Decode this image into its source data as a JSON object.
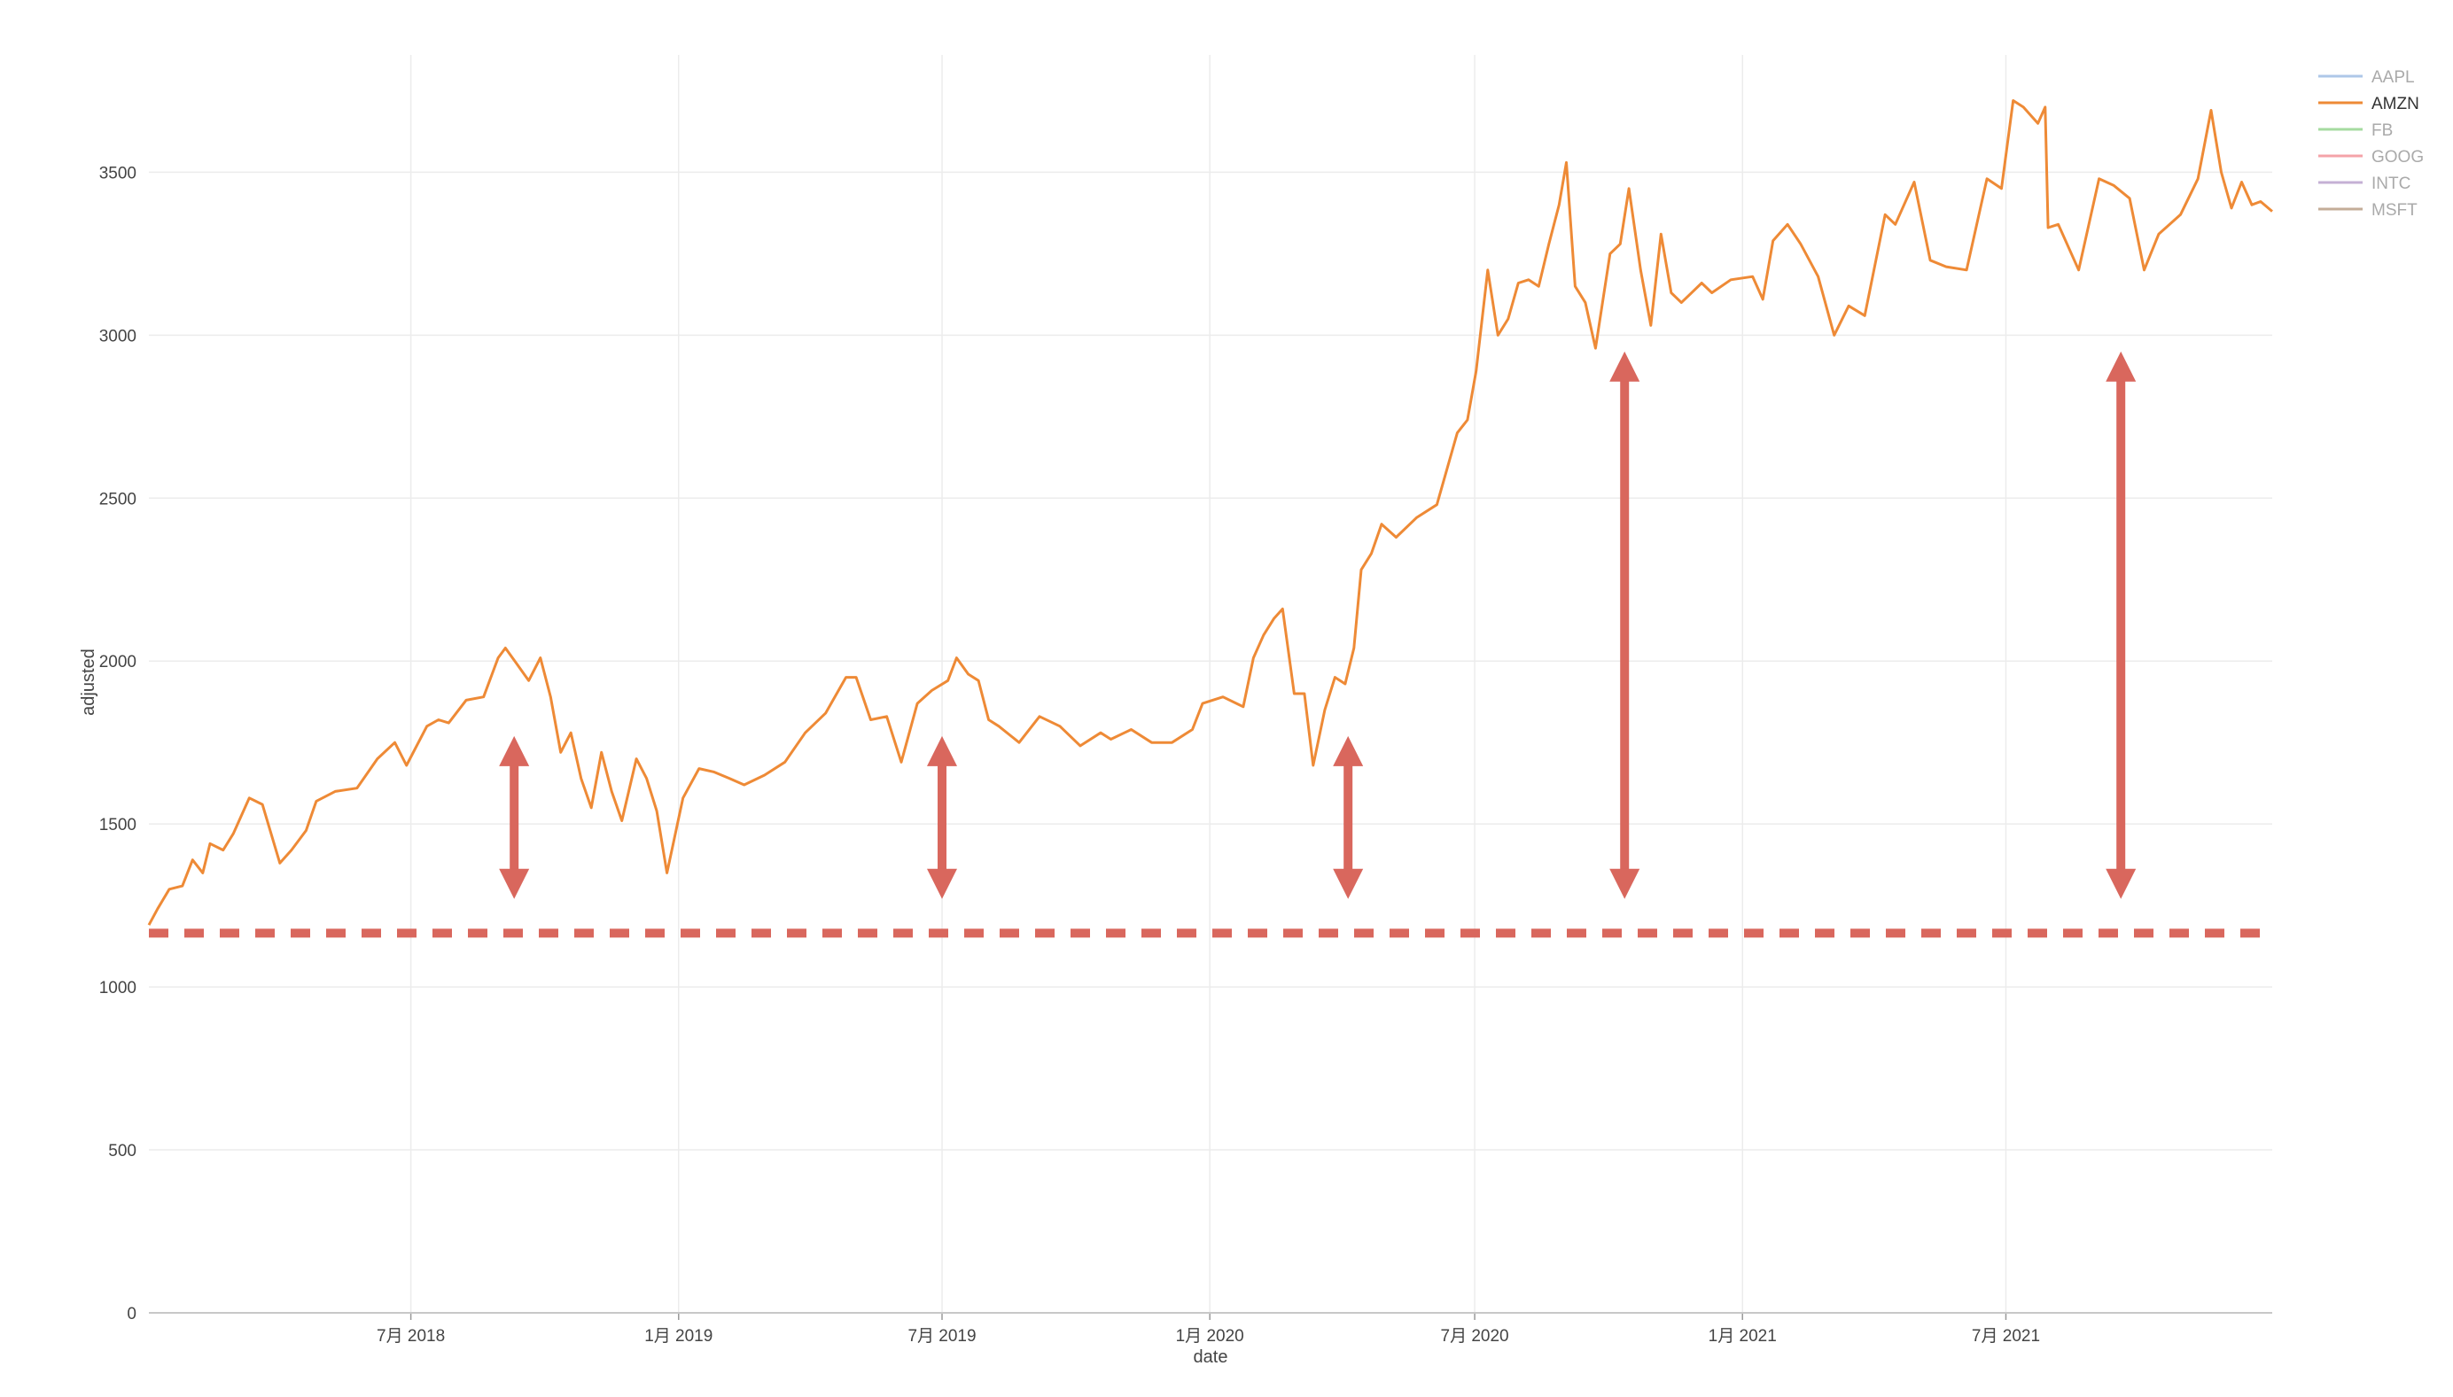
{
  "chart_data": {
    "type": "line",
    "title": "",
    "xlabel": "date",
    "ylabel": "adjusted",
    "x_range": [
      "2018-01-02",
      "2021-12-31"
    ],
    "ylim": [
      0,
      3860
    ],
    "yticks": [
      0,
      500,
      1000,
      1500,
      2000,
      2500,
      3000,
      3500
    ],
    "ytick_labels": [
      "0",
      "500",
      "1000",
      "1500",
      "2000",
      "2500",
      "3000",
      "3500"
    ],
    "xticks": [
      "2018-07-01",
      "2019-01-01",
      "2019-07-01",
      "2020-01-01",
      "2020-07-01",
      "2021-01-01",
      "2021-07-01"
    ],
    "xtick_labels": [
      "7月 2018",
      "1月 2019",
      "7月 2019",
      "1月 2020",
      "7月 2020",
      "1月 2021",
      "7月 2021"
    ],
    "grid": true,
    "legend_position": "top-right",
    "legend": [
      {
        "name": "AAPL",
        "color": "#aec7e8",
        "active": false
      },
      {
        "name": "AMZN",
        "color": "#ee8a36",
        "active": true
      },
      {
        "name": "FB",
        "color": "#a6dba0",
        "active": false
      },
      {
        "name": "GOOG",
        "color": "#f4a3a8",
        "active": false
      },
      {
        "name": "INTC",
        "color": "#c5b0d5",
        "active": false
      },
      {
        "name": "MSFT",
        "color": "#c4ad98",
        "active": false
      }
    ],
    "series": [
      {
        "name": "AMZN",
        "color": "#ee8a36",
        "points": [
          [
            "2018-01-02",
            1190
          ],
          [
            "2018-01-08",
            1240
          ],
          [
            "2018-01-16",
            1300
          ],
          [
            "2018-01-25",
            1310
          ],
          [
            "2018-02-01",
            1390
          ],
          [
            "2018-02-08",
            1350
          ],
          [
            "2018-02-13",
            1440
          ],
          [
            "2018-02-22",
            1420
          ],
          [
            "2018-03-01",
            1470
          ],
          [
            "2018-03-12",
            1580
          ],
          [
            "2018-03-21",
            1560
          ],
          [
            "2018-04-02",
            1380
          ],
          [
            "2018-04-10",
            1420
          ],
          [
            "2018-04-20",
            1480
          ],
          [
            "2018-04-27",
            1570
          ],
          [
            "2018-05-10",
            1600
          ],
          [
            "2018-05-25",
            1610
          ],
          [
            "2018-06-08",
            1700
          ],
          [
            "2018-06-20",
            1750
          ],
          [
            "2018-06-28",
            1680
          ],
          [
            "2018-07-12",
            1800
          ],
          [
            "2018-07-20",
            1820
          ],
          [
            "2018-07-27",
            1810
          ],
          [
            "2018-08-08",
            1880
          ],
          [
            "2018-08-20",
            1890
          ],
          [
            "2018-08-30",
            2010
          ],
          [
            "2018-09-04",
            2040
          ],
          [
            "2018-09-12",
            1990
          ],
          [
            "2018-09-20",
            1940
          ],
          [
            "2018-09-28",
            2010
          ],
          [
            "2018-10-05",
            1890
          ],
          [
            "2018-10-12",
            1720
          ],
          [
            "2018-10-19",
            1780
          ],
          [
            "2018-10-26",
            1640
          ],
          [
            "2018-11-02",
            1550
          ],
          [
            "2018-11-09",
            1720
          ],
          [
            "2018-11-16",
            1600
          ],
          [
            "2018-11-23",
            1510
          ],
          [
            "2018-12-03",
            1700
          ],
          [
            "2018-12-10",
            1640
          ],
          [
            "2018-12-17",
            1540
          ],
          [
            "2018-12-24",
            1350
          ],
          [
            "2019-01-04",
            1580
          ],
          [
            "2019-01-15",
            1670
          ],
          [
            "2019-01-25",
            1660
          ],
          [
            "2019-02-05",
            1640
          ],
          [
            "2019-02-15",
            1620
          ],
          [
            "2019-03-01",
            1650
          ],
          [
            "2019-03-15",
            1690
          ],
          [
            "2019-03-29",
            1780
          ],
          [
            "2019-04-12",
            1840
          ],
          [
            "2019-04-26",
            1950
          ],
          [
            "2019-05-03",
            1950
          ],
          [
            "2019-05-13",
            1820
          ],
          [
            "2019-05-24",
            1830
          ],
          [
            "2019-06-03",
            1690
          ],
          [
            "2019-06-14",
            1870
          ],
          [
            "2019-06-24",
            1910
          ],
          [
            "2019-07-05",
            1940
          ],
          [
            "2019-07-11",
            2010
          ],
          [
            "2019-07-19",
            1960
          ],
          [
            "2019-07-26",
            1940
          ],
          [
            "2019-08-02",
            1820
          ],
          [
            "2019-08-09",
            1800
          ],
          [
            "2019-08-23",
            1750
          ],
          [
            "2019-09-06",
            1830
          ],
          [
            "2019-09-20",
            1800
          ],
          [
            "2019-10-04",
            1740
          ],
          [
            "2019-10-18",
            1780
          ],
          [
            "2019-10-25",
            1760
          ],
          [
            "2019-11-08",
            1790
          ],
          [
            "2019-11-22",
            1750
          ],
          [
            "2019-12-06",
            1750
          ],
          [
            "2019-12-20",
            1790
          ],
          [
            "2019-12-27",
            1870
          ],
          [
            "2020-01-10",
            1890
          ],
          [
            "2020-01-24",
            1860
          ],
          [
            "2020-01-31",
            2010
          ],
          [
            "2020-02-07",
            2080
          ],
          [
            "2020-02-14",
            2130
          ],
          [
            "2020-02-20",
            2160
          ],
          [
            "2020-02-28",
            1900
          ],
          [
            "2020-03-06",
            1900
          ],
          [
            "2020-03-12",
            1680
          ],
          [
            "2020-03-20",
            1850
          ],
          [
            "2020-03-27",
            1950
          ],
          [
            "2020-04-03",
            1930
          ],
          [
            "2020-04-09",
            2040
          ],
          [
            "2020-04-14",
            2280
          ],
          [
            "2020-04-21",
            2330
          ],
          [
            "2020-04-28",
            2420
          ],
          [
            "2020-05-08",
            2380
          ],
          [
            "2020-05-22",
            2440
          ],
          [
            "2020-06-05",
            2480
          ],
          [
            "2020-06-19",
            2700
          ],
          [
            "2020-06-26",
            2740
          ],
          [
            "2020-07-02",
            2890
          ],
          [
            "2020-07-10",
            3200
          ],
          [
            "2020-07-17",
            3000
          ],
          [
            "2020-07-24",
            3050
          ],
          [
            "2020-07-31",
            3160
          ],
          [
            "2020-08-07",
            3170
          ],
          [
            "2020-08-14",
            3150
          ],
          [
            "2020-08-21",
            3280
          ],
          [
            "2020-08-28",
            3400
          ],
          [
            "2020-09-02",
            3530
          ],
          [
            "2020-09-08",
            3150
          ],
          [
            "2020-09-15",
            3100
          ],
          [
            "2020-09-22",
            2960
          ],
          [
            "2020-10-02",
            3250
          ],
          [
            "2020-10-09",
            3280
          ],
          [
            "2020-10-15",
            3450
          ],
          [
            "2020-10-23",
            3200
          ],
          [
            "2020-10-30",
            3030
          ],
          [
            "2020-11-06",
            3310
          ],
          [
            "2020-11-13",
            3130
          ],
          [
            "2020-11-20",
            3100
          ],
          [
            "2020-12-04",
            3160
          ],
          [
            "2020-12-11",
            3130
          ],
          [
            "2020-12-24",
            3170
          ],
          [
            "2021-01-08",
            3180
          ],
          [
            "2021-01-15",
            3110
          ],
          [
            "2021-01-22",
            3290
          ],
          [
            "2021-02-01",
            3340
          ],
          [
            "2021-02-10",
            3280
          ],
          [
            "2021-02-22",
            3180
          ],
          [
            "2021-03-05",
            3000
          ],
          [
            "2021-03-15",
            3090
          ],
          [
            "2021-03-26",
            3060
          ],
          [
            "2021-04-09",
            3370
          ],
          [
            "2021-04-16",
            3340
          ],
          [
            "2021-04-29",
            3470
          ],
          [
            "2021-05-10",
            3230
          ],
          [
            "2021-05-21",
            3210
          ],
          [
            "2021-06-04",
            3200
          ],
          [
            "2021-06-18",
            3480
          ],
          [
            "2021-06-28",
            3450
          ],
          [
            "2021-07-06",
            3720
          ],
          [
            "2021-07-13",
            3700
          ],
          [
            "2021-07-23",
            3650
          ],
          [
            "2021-07-28",
            3700
          ],
          [
            "2021-07-30",
            3330
          ],
          [
            "2021-08-06",
            3340
          ],
          [
            "2021-08-20",
            3200
          ],
          [
            "2021-09-03",
            3480
          ],
          [
            "2021-09-13",
            3460
          ],
          [
            "2021-09-24",
            3420
          ],
          [
            "2021-10-04",
            3200
          ],
          [
            "2021-10-14",
            3310
          ],
          [
            "2021-10-29",
            3370
          ],
          [
            "2021-11-10",
            3480
          ],
          [
            "2021-11-19",
            3690
          ],
          [
            "2021-11-26",
            3500
          ],
          [
            "2021-12-03",
            3390
          ],
          [
            "2021-12-10",
            3470
          ],
          [
            "2021-12-17",
            3400
          ],
          [
            "2021-12-23",
            3410
          ],
          [
            "2021-12-31",
            3380
          ]
        ]
      }
    ],
    "annotations": [
      {
        "type": "hline",
        "style": "dashed",
        "color": "#d9675d",
        "y": 1165,
        "x_from": "2018-01-02",
        "x_to": "2021-12-31"
      },
      {
        "type": "double-arrow",
        "color": "#d9675d",
        "x": "2018-09-10",
        "y_from": 1270,
        "y_to": 1770
      },
      {
        "type": "double-arrow",
        "color": "#d9675d",
        "x": "2019-07-01",
        "y_from": 1270,
        "y_to": 1770
      },
      {
        "type": "double-arrow",
        "color": "#d9675d",
        "x": "2020-04-05",
        "y_from": 1270,
        "y_to": 1770
      },
      {
        "type": "double-arrow",
        "color": "#d9675d",
        "x": "2020-10-12",
        "y_from": 1270,
        "y_to": 2950
      },
      {
        "type": "double-arrow",
        "color": "#d9675d",
        "x": "2021-09-18",
        "y_from": 1270,
        "y_to": 2950
      }
    ]
  }
}
